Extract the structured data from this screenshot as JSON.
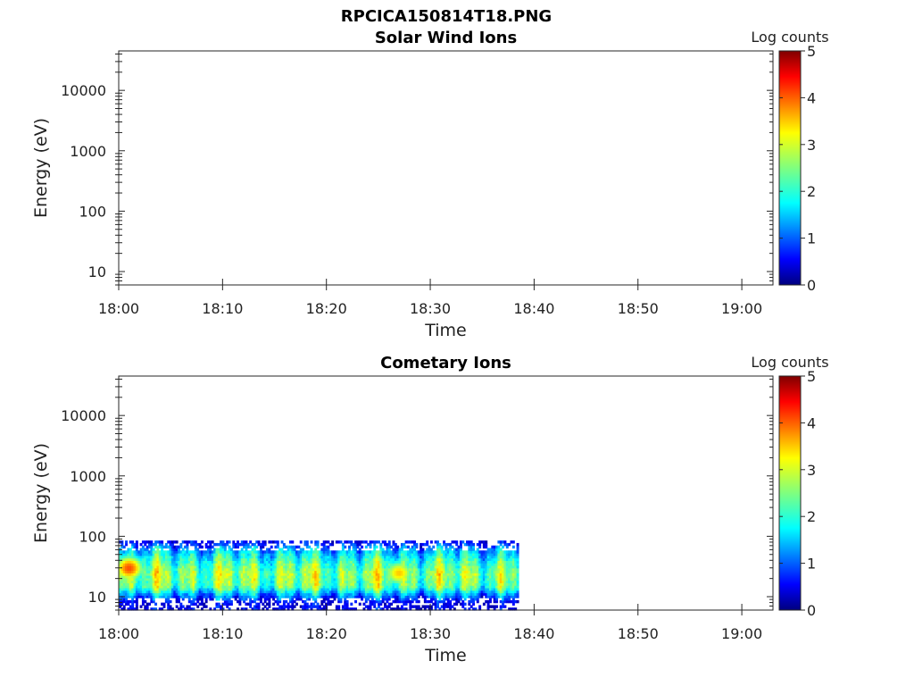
{
  "figure": {
    "title": "RPCICA150814T18.PNG"
  },
  "chart_data": [
    {
      "type": "heatmap",
      "title": "Solar Wind Ions",
      "xlabel": "Time",
      "ylabel": "Energy (eV)",
      "x_ticks": [
        "18:00",
        "18:10",
        "18:20",
        "18:30",
        "18:40",
        "18:50",
        "19:00"
      ],
      "xlim": [
        "18:00",
        "19:03"
      ],
      "y_scale": "log",
      "y_ticks": [
        "10",
        "100",
        "1000",
        "10000"
      ],
      "ylim": [
        6,
        45000
      ],
      "colorbar": {
        "label": "Log counts",
        "range": [
          0,
          5
        ],
        "ticks": [
          "0",
          "1",
          "2",
          "3",
          "4",
          "5"
        ],
        "colormap": "jet"
      },
      "data": []
    },
    {
      "type": "heatmap",
      "title": "Cometary Ions",
      "xlabel": "Time",
      "ylabel": "Energy (eV)",
      "x_ticks": [
        "18:00",
        "18:10",
        "18:20",
        "18:30",
        "18:40",
        "18:50",
        "19:00"
      ],
      "xlim": [
        "18:00",
        "19:03"
      ],
      "y_scale": "log",
      "y_ticks": [
        "10",
        "100",
        "1000",
        "10000"
      ],
      "ylim": [
        6,
        45000
      ],
      "colorbar": {
        "label": "Log counts",
        "range": [
          0,
          5
        ],
        "ticks": [
          "0",
          "1",
          "2",
          "3",
          "4",
          "5"
        ],
        "colormap": "jet"
      },
      "data_extent": {
        "time": [
          "18:00",
          "18:38.5"
        ],
        "energy_eV": [
          6,
          85
        ]
      },
      "log_counts_by_energy_eV": [
        {
          "energy_eV": 80,
          "log_counts": 0.7
        },
        {
          "energy_eV": 60,
          "log_counts": 1.5
        },
        {
          "energy_eV": 40,
          "log_counts": 2.1
        },
        {
          "energy_eV": 25,
          "log_counts": 2.6
        },
        {
          "energy_eV": 15,
          "log_counts": 2.4
        },
        {
          "energy_eV": 11,
          "log_counts": 1.4
        },
        {
          "energy_eV": 8,
          "log_counts": 0.5
        }
      ],
      "features": [
        {
          "time": "18:01",
          "energy_eV": 30,
          "log_counts": 4.0
        },
        {
          "time": "18:27",
          "energy_eV": 25,
          "log_counts": 3.4
        }
      ]
    }
  ]
}
